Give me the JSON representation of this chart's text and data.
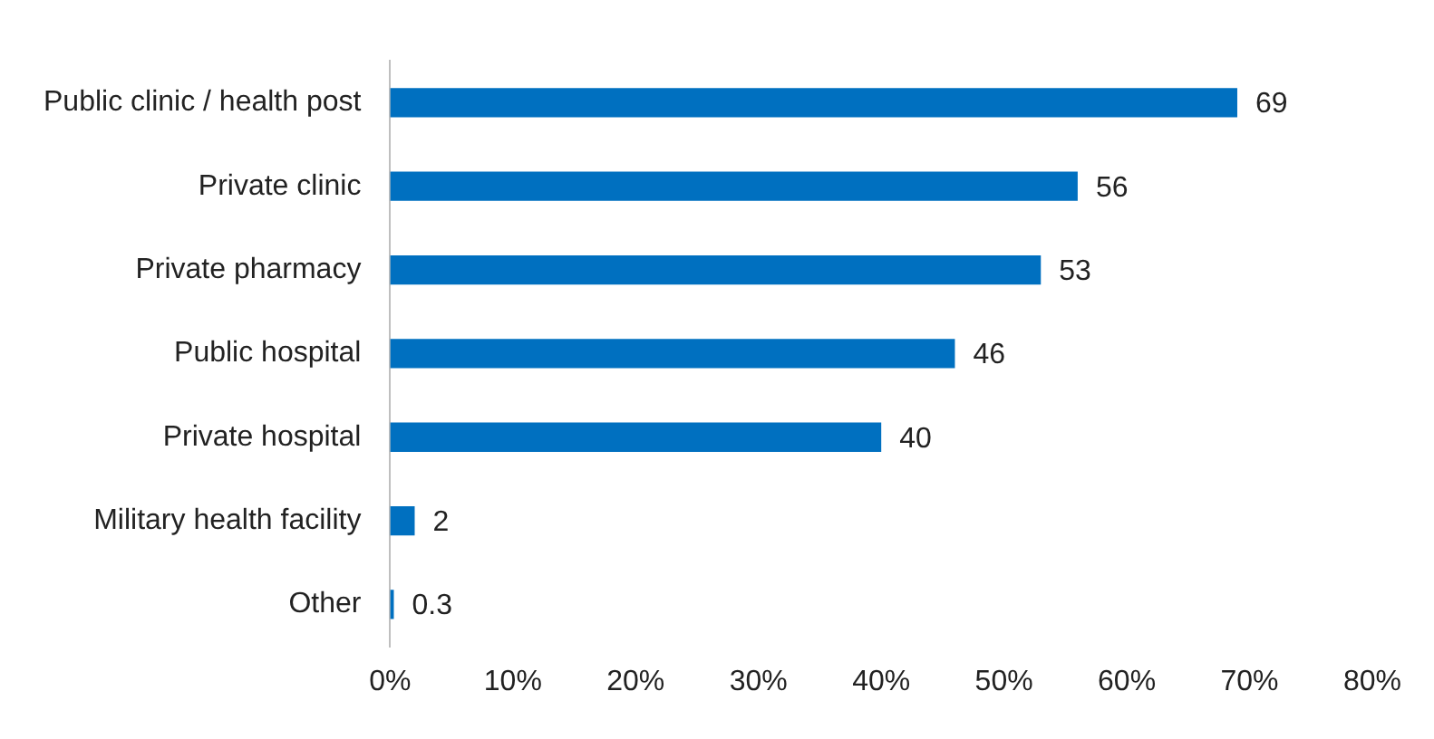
{
  "chart_data": {
    "type": "bar",
    "orientation": "horizontal",
    "categories": [
      "Public clinic / health post",
      "Private clinic",
      "Private pharmacy",
      "Public hospital",
      "Private hospital",
      "Military health facility",
      "Other"
    ],
    "values": [
      69,
      56,
      53,
      46,
      40,
      2,
      0.3
    ],
    "color": "#0070c0",
    "xlim": [
      0,
      80
    ],
    "xticks": [
      {
        "value": 0,
        "label": "0%"
      },
      {
        "value": 10,
        "label": "10%"
      },
      {
        "value": 20,
        "label": "20%"
      },
      {
        "value": 30,
        "label": "30%"
      },
      {
        "value": 40,
        "label": "40%"
      },
      {
        "value": 50,
        "label": "50%"
      },
      {
        "value": 60,
        "label": "60%"
      },
      {
        "value": 70,
        "label": "70%"
      },
      {
        "value": 80,
        "label": "80%"
      }
    ],
    "grid": false,
    "data_labels": true,
    "legend": false
  }
}
